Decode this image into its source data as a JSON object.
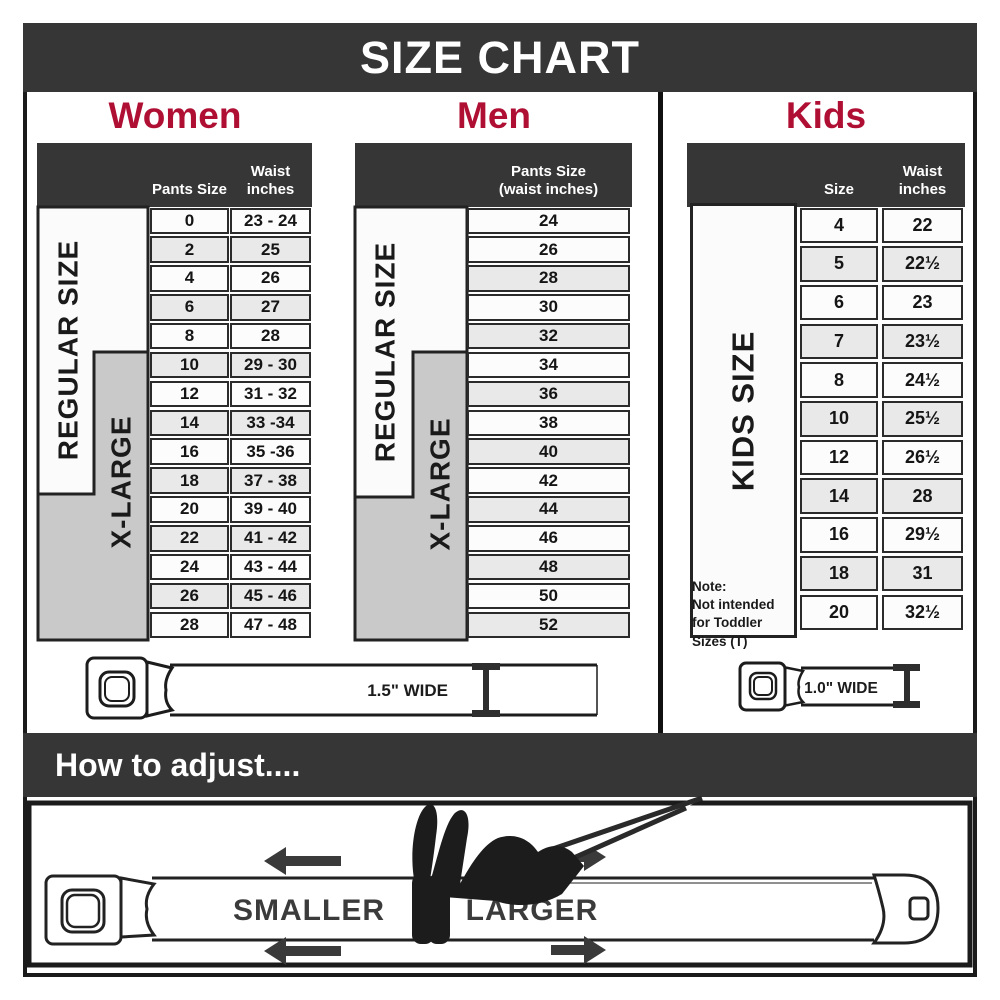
{
  "title": "SIZE CHART",
  "colors": {
    "accent": "#b00f34",
    "bar": "#363636",
    "cell_alt": "#e9e9e9",
    "panel_gray": "#c9c9c9"
  },
  "sections": {
    "women": {
      "heading": "Women",
      "col1_header": "Pants Size",
      "col2_header": "Waist inches",
      "regular_label": "REGULAR SIZE",
      "xlarge_label": "X-LARGE",
      "rows": [
        {
          "size": "0",
          "waist": "23 - 24"
        },
        {
          "size": "2",
          "waist": "25"
        },
        {
          "size": "4",
          "waist": "26"
        },
        {
          "size": "6",
          "waist": "27"
        },
        {
          "size": "8",
          "waist": "28"
        },
        {
          "size": "10",
          "waist": "29 - 30"
        },
        {
          "size": "12",
          "waist": "31 - 32"
        },
        {
          "size": "14",
          "waist": "33 -34"
        },
        {
          "size": "16",
          "waist": "35 -36"
        },
        {
          "size": "18",
          "waist": "37 - 38"
        },
        {
          "size": "20",
          "waist": "39 - 40"
        },
        {
          "size": "22",
          "waist": "41 - 42"
        },
        {
          "size": "24",
          "waist": "43 - 44"
        },
        {
          "size": "26",
          "waist": "45 - 46"
        },
        {
          "size": "28",
          "waist": "47 - 48"
        }
      ]
    },
    "men": {
      "heading": "Men",
      "col_header_line1": "Pants Size",
      "col_header_line2": "(waist inches)",
      "regular_label": "REGULAR SIZE",
      "xlarge_label": "X-LARGE",
      "rows": [
        {
          "size": "24"
        },
        {
          "size": "26"
        },
        {
          "size": "28"
        },
        {
          "size": "30"
        },
        {
          "size": "32"
        },
        {
          "size": "34"
        },
        {
          "size": "36"
        },
        {
          "size": "38"
        },
        {
          "size": "40"
        },
        {
          "size": "42"
        },
        {
          "size": "44"
        },
        {
          "size": "46"
        },
        {
          "size": "48"
        },
        {
          "size": "50"
        },
        {
          "size": "52"
        }
      ]
    },
    "kids": {
      "heading": "Kids",
      "col1_header": "Size",
      "col2_header": "Waist inches",
      "panel_label": "KIDS SIZE",
      "note_title": "Note:",
      "note_text": "Not intended for Toddler Sizes (T)",
      "rows": [
        {
          "size": "4",
          "waist": "22"
        },
        {
          "size": "5",
          "waist": "22½"
        },
        {
          "size": "6",
          "waist": "23"
        },
        {
          "size": "7",
          "waist": "23½"
        },
        {
          "size": "8",
          "waist": "24½"
        },
        {
          "size": "10",
          "waist": "25½"
        },
        {
          "size": "12",
          "waist": "26½"
        },
        {
          "size": "14",
          "waist": "28"
        },
        {
          "size": "16",
          "waist": "29½"
        },
        {
          "size": "18",
          "waist": "31"
        },
        {
          "size": "20",
          "waist": "32½"
        }
      ]
    }
  },
  "belts": {
    "adult_width_label": "1.5\" WIDE",
    "kids_width_label": "1.0\" WIDE"
  },
  "how_to_adjust": {
    "heading": "How to adjust....",
    "smaller_label": "SMALLER",
    "larger_label": "LARGER"
  }
}
